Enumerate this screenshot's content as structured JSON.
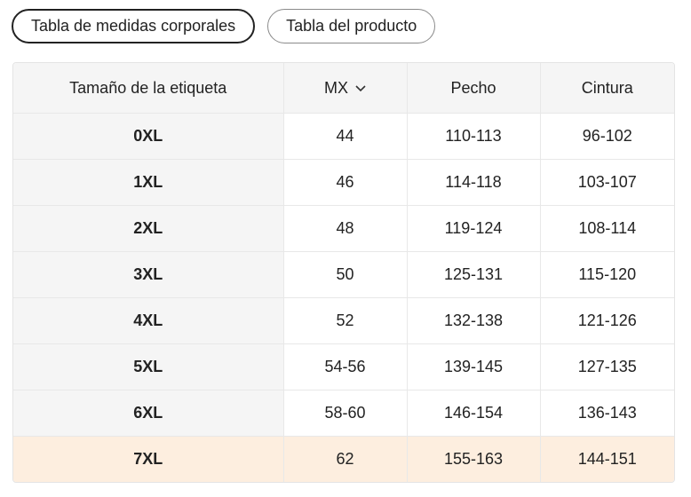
{
  "tabs": [
    "Tabla de medidas corporales",
    "Tabla del producto"
  ],
  "active_tab": 0,
  "table": {
    "header": [
      "Tamaño de la etiqueta",
      "MX",
      "Pecho",
      "Cintura"
    ],
    "rows": [
      [
        "0XL",
        "44",
        "110-113",
        "96-102"
      ],
      [
        "1XL",
        "46",
        "114-118",
        "103-107"
      ],
      [
        "2XL",
        "48",
        "119-124",
        "108-114"
      ],
      [
        "3XL",
        "50",
        "125-131",
        "115-120"
      ],
      [
        "4XL",
        "52",
        "132-138",
        "121-126"
      ],
      [
        "5XL",
        "54-56",
        "139-145",
        "127-135"
      ],
      [
        "6XL",
        "58-60",
        "146-154",
        "136-143"
      ],
      [
        "7XL",
        "62",
        "155-163",
        "144-151"
      ]
    ],
    "highlighted_row": 7
  }
}
